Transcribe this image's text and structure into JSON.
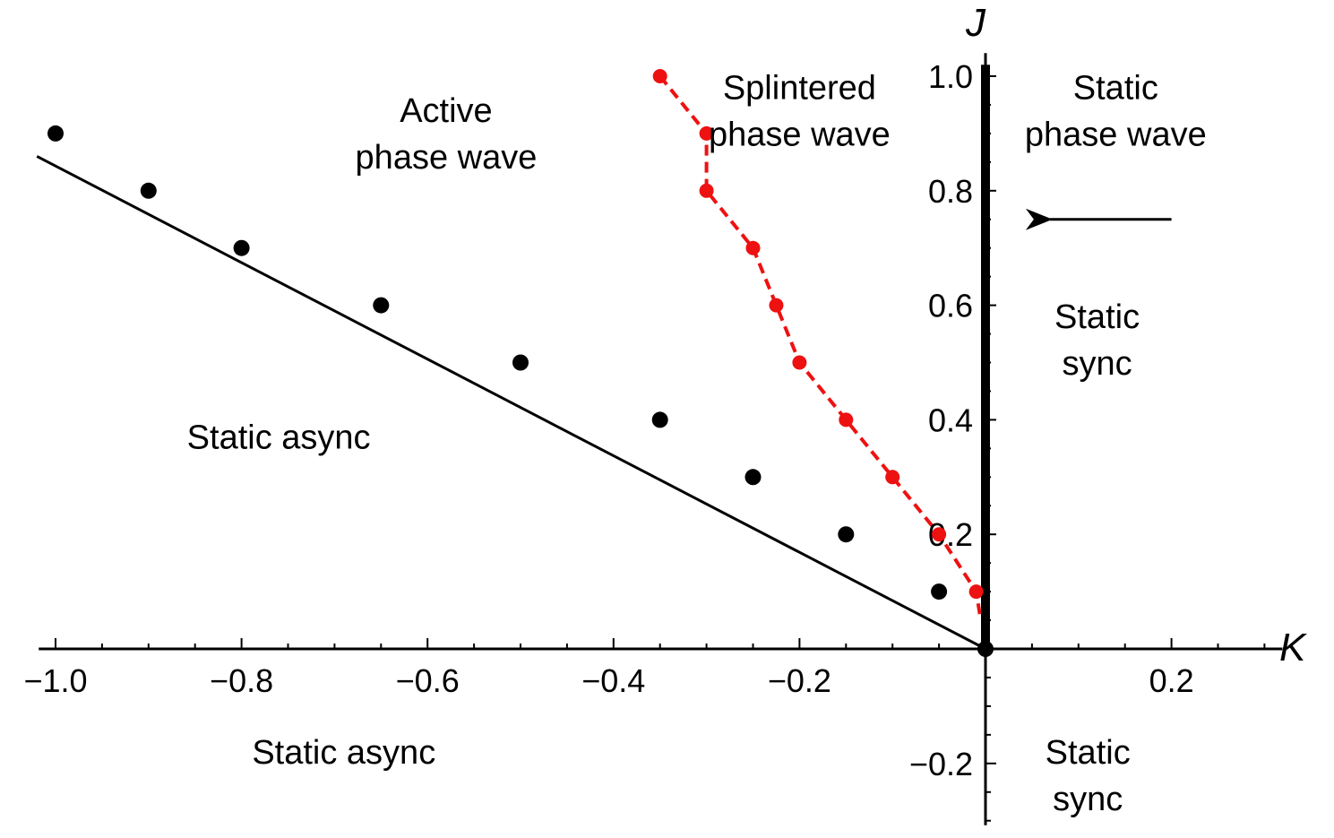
{
  "chart_data": {
    "type": "scatter",
    "xlabel": "K",
    "ylabel": "J",
    "xlim": [
      -1.02,
      0.3
    ],
    "ylim": [
      -0.3,
      1.02
    ],
    "grid": false,
    "x_ticks": [
      {
        "value": -1.0,
        "label": "−1.0"
      },
      {
        "value": -0.8,
        "label": "−0.8"
      },
      {
        "value": -0.6,
        "label": "−0.6"
      },
      {
        "value": -0.4,
        "label": "−0.4"
      },
      {
        "value": -0.2,
        "label": "−0.2"
      },
      {
        "value": 0.2,
        "label": "0.2"
      }
    ],
    "y_ticks": [
      {
        "value": 1.0,
        "label": "1.0"
      },
      {
        "value": 0.8,
        "label": "0.8"
      },
      {
        "value": 0.6,
        "label": "0.6"
      },
      {
        "value": 0.4,
        "label": "0.4"
      },
      {
        "value": 0.2,
        "label": "0.2"
      },
      {
        "value": -0.2,
        "label": "−0.2"
      }
    ],
    "series": [
      {
        "kind": "points",
        "color": "#000000",
        "x": [
          -1.0,
          -0.9,
          -0.8,
          -0.65,
          -0.5,
          -0.35,
          -0.25,
          -0.15,
          -0.05
        ],
        "y": [
          0.9,
          0.8,
          0.7,
          0.6,
          0.5,
          0.4,
          0.3,
          0.2,
          0.1
        ]
      },
      {
        "kind": "dashed-line-with-points",
        "color": "#ee1111",
        "x": [
          -0.35,
          -0.3,
          -0.3,
          -0.25,
          -0.225,
          -0.2,
          -0.15,
          -0.1,
          -0.05,
          -0.01,
          -0.005
        ],
        "y": [
          1.0,
          0.9,
          0.8,
          0.7,
          0.6,
          0.5,
          0.4,
          0.3,
          0.2,
          0.1,
          0.05
        ],
        "marker_count": 10
      },
      {
        "kind": "line",
        "color": "#000000",
        "x": [
          -1.02,
          0.0
        ],
        "y": [
          0.86,
          0.0
        ]
      },
      {
        "kind": "thick-line",
        "color": "#000000",
        "x": [
          0.0,
          0.0
        ],
        "y": [
          0.0,
          1.02
        ]
      }
    ],
    "annotations": [
      {
        "lines": [
          "Active",
          "phase wave"
        ],
        "x": -0.58,
        "y": 0.92
      },
      {
        "lines": [
          "Splintered",
          "phase wave"
        ],
        "x": -0.2,
        "y": 0.96
      },
      {
        "lines": [
          "Static",
          "phase wave"
        ],
        "x": 0.14,
        "y": 0.96
      },
      {
        "lines": [
          "Static",
          "sync"
        ],
        "x": 0.12,
        "y": 0.56
      },
      {
        "lines": [
          "Static async"
        ],
        "x": -0.76,
        "y": 0.35
      },
      {
        "lines": [
          "Static async"
        ],
        "x": -0.69,
        "y": -0.2
      },
      {
        "lines": [
          "Static",
          "sync"
        ],
        "x": 0.11,
        "y": -0.2
      }
    ],
    "arrow": {
      "from": [
        0.2,
        0.75
      ],
      "to": [
        0.05,
        0.75
      ]
    }
  }
}
